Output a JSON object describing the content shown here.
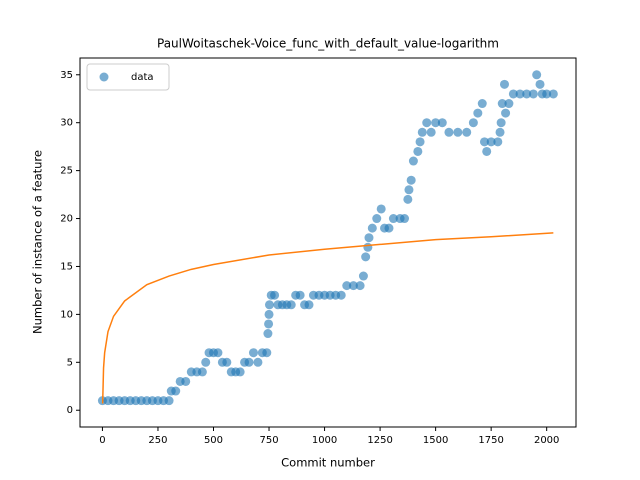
{
  "chart_data": {
    "type": "scatter",
    "title": "PaulWoitaschek-Voice_func_with_default_value-logarithm",
    "x_label": "Commit number",
    "y_label": "Number of instance of a feature",
    "xlim": [
      -101,
      2132
    ],
    "ylim": [
      -1.75,
      36.75
    ],
    "xticks": [
      0,
      250,
      500,
      750,
      1000,
      1250,
      1500,
      1750,
      2000
    ],
    "yticks": [
      0,
      5,
      10,
      15,
      20,
      25,
      30,
      35
    ],
    "legend": "upper left",
    "series": [
      {
        "name": "data",
        "color": "#1f77b4",
        "x": [
          0,
          25,
          50,
          75,
          100,
          125,
          150,
          175,
          200,
          225,
          250,
          275,
          300,
          310,
          330,
          350,
          375,
          400,
          425,
          450,
          465,
          480,
          500,
          520,
          540,
          560,
          580,
          600,
          620,
          640,
          660,
          680,
          700,
          720,
          740,
          745,
          748,
          750,
          752,
          760,
          775,
          790,
          810,
          830,
          850,
          870,
          890,
          910,
          930,
          950,
          975,
          1000,
          1025,
          1050,
          1075,
          1100,
          1130,
          1160,
          1175,
          1185,
          1195,
          1200,
          1215,
          1235,
          1255,
          1270,
          1290,
          1310,
          1340,
          1360,
          1375,
          1380,
          1390,
          1400,
          1420,
          1430,
          1440,
          1460,
          1480,
          1500,
          1530,
          1560,
          1600,
          1640,
          1670,
          1690,
          1710,
          1720,
          1730,
          1750,
          1780,
          1790,
          1795,
          1800,
          1810,
          1815,
          1830,
          1850,
          1880,
          1910,
          1940,
          1955,
          1970,
          1980,
          2000,
          2030
        ],
        "values": [
          1,
          1,
          1,
          1,
          1,
          1,
          1,
          1,
          1,
          1,
          1,
          1,
          1,
          2,
          2,
          3,
          3,
          4,
          4,
          4,
          5,
          6,
          6,
          6,
          5,
          5,
          4,
          4,
          4,
          5,
          5,
          6,
          5,
          6,
          6,
          8,
          9,
          10,
          11,
          12,
          12,
          11,
          11,
          11,
          11,
          12,
          12,
          11,
          11,
          12,
          12,
          12,
          12,
          12,
          12,
          13,
          13,
          13,
          14,
          16,
          17,
          18,
          19,
          20,
          21,
          19,
          19,
          20,
          20,
          20,
          22,
          23,
          24,
          26,
          27,
          28,
          29,
          30,
          29,
          30,
          30,
          29,
          29,
          29,
          30,
          31,
          32,
          28,
          27,
          28,
          28,
          29,
          30,
          32,
          34,
          31,
          32,
          33,
          33,
          33,
          33,
          35,
          34,
          33,
          33,
          33
        ]
      },
      {
        "type": "line",
        "color": "#ff7f0e",
        "x": [
          1,
          5,
          10,
          25,
          50,
          100,
          200,
          300,
          400,
          500,
          750,
          1000,
          1250,
          1500,
          1750,
          2030
        ],
        "values": [
          0.7,
          4.4,
          6.0,
          8.2,
          9.8,
          11.4,
          13.1,
          14.0,
          14.7,
          15.2,
          16.2,
          16.8,
          17.3,
          17.8,
          18.1,
          18.5
        ]
      }
    ]
  }
}
